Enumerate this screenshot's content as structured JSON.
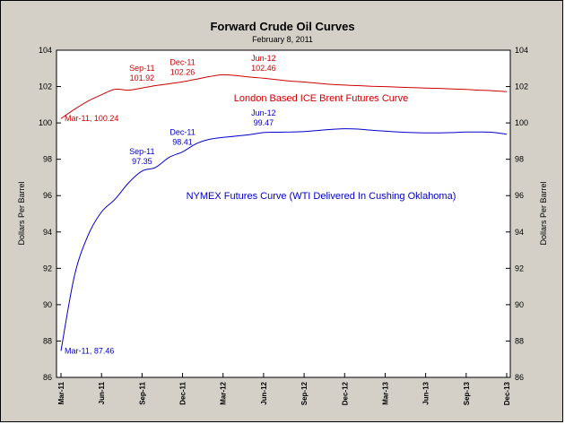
{
  "chart_data": {
    "type": "line",
    "title": "Forward Crude Oil Curves",
    "subtitle": "February 8, 2011",
    "ylabel_left": "Dollars Per Barrel",
    "ylabel_right": "Dollars Per Barrel",
    "ylim": [
      86,
      104
    ],
    "yticks": [
      86,
      88,
      90,
      92,
      94,
      96,
      98,
      100,
      102,
      104
    ],
    "grid": false,
    "x": [
      "Mar-11",
      "Apr-11",
      "May-11",
      "Jun-11",
      "Jul-11",
      "Aug-11",
      "Sep-11",
      "Oct-11",
      "Nov-11",
      "Dec-11",
      "Jan-12",
      "Feb-12",
      "Mar-12",
      "Apr-12",
      "May-12",
      "Jun-12",
      "Jul-12",
      "Aug-12",
      "Sep-12",
      "Oct-12",
      "Nov-12",
      "Dec-12",
      "Jan-13",
      "Feb-13",
      "Mar-13",
      "Apr-13",
      "May-13",
      "Jun-13",
      "Jul-13",
      "Aug-13",
      "Sep-13",
      "Oct-13",
      "Nov-13",
      "Dec-13"
    ],
    "xtick_labels": [
      "Mar-11",
      "Jun-11",
      "Sep-11",
      "Dec-11",
      "Mar-12",
      "Jun-12",
      "Sep-12",
      "Dec-12",
      "Mar-13",
      "Jun-13",
      "Sep-13",
      "Dec-13"
    ],
    "series": [
      {
        "name": "London Based ICE Brent Futures Curve",
        "color": "#cc0000",
        "values": [
          100.24,
          100.75,
          101.2,
          101.55,
          101.85,
          101.8,
          101.92,
          102.05,
          102.15,
          102.26,
          102.4,
          102.55,
          102.65,
          102.6,
          102.52,
          102.46,
          102.38,
          102.3,
          102.25,
          102.18,
          102.12,
          102.08,
          102.05,
          102.02,
          102.0,
          101.97,
          101.94,
          101.92,
          101.9,
          101.87,
          101.84,
          101.8,
          101.77,
          101.72
        ]
      },
      {
        "name": "NYMEX Futures Curve (WTI Delivered In Cushing Oklahoma)",
        "color": "#0000cc",
        "values": [
          87.46,
          91.6,
          93.8,
          95.1,
          95.8,
          96.7,
          97.35,
          97.55,
          98.1,
          98.41,
          98.85,
          99.1,
          99.2,
          99.28,
          99.36,
          99.47,
          99.49,
          99.5,
          99.52,
          99.58,
          99.64,
          99.68,
          99.66,
          99.6,
          99.55,
          99.5,
          99.47,
          99.45,
          99.45,
          99.47,
          99.5,
          99.5,
          99.48,
          99.38
        ]
      }
    ],
    "annotations": [
      {
        "series": 0,
        "index": 0,
        "text": "Mar-11, 100.24",
        "pos": "right"
      },
      {
        "series": 0,
        "index": 6,
        "text": "Sep-11",
        "text2": "101.92",
        "pos": "above"
      },
      {
        "series": 0,
        "index": 9,
        "text": "Dec-11",
        "text2": "102.26",
        "pos": "above"
      },
      {
        "series": 0,
        "index": 15,
        "text": "Jun-12",
        "text2": "102.46",
        "pos": "above"
      },
      {
        "series": 1,
        "index": 0,
        "text": "Mar-11, 87.46",
        "pos": "right"
      },
      {
        "series": 1,
        "index": 6,
        "text": "Sep-11",
        "text2": "97.35",
        "pos": "above"
      },
      {
        "series": 1,
        "index": 9,
        "text": "Dec-11",
        "text2": "98.41",
        "pos": "above"
      },
      {
        "series": 1,
        "index": 15,
        "text": "Jun-12",
        "text2": "99.47",
        "pos": "above"
      }
    ]
  }
}
